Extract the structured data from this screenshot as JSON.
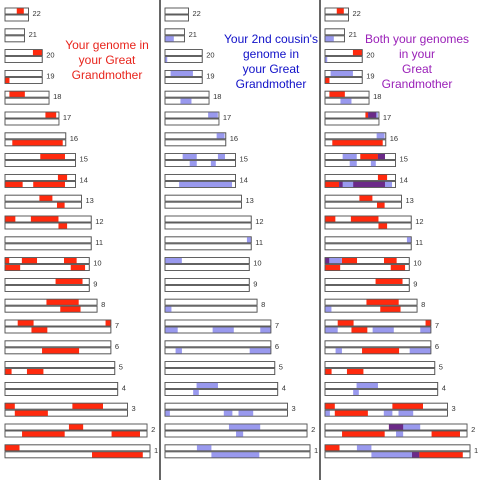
{
  "panels": [
    {
      "title": "Your genome in\nyour Great\nGrandmother",
      "title_color": "#e8241c",
      "highlight_color": "#ff2a0e"
    },
    {
      "title": "Your 2nd cousin's\ngenome in\nyour Great\nGrandmother",
      "title_color": "#1010c8",
      "highlight_color": "#8f8ff0"
    },
    {
      "title": "Both your genomes\nin your\nGreat\nGrandmother",
      "title_color": "#9a20b8",
      "highlight_color": "#ff2a0e"
    }
  ],
  "colors": {
    "you": "#ff2a0e",
    "cousin": "#9999ee",
    "overlap": "#6b2a88",
    "bar_fill": "#ffffff",
    "bar_stroke": "#555555",
    "divider": "#000000"
  },
  "chromosomes": [
    {
      "label": "22",
      "length": 0.24,
      "you": [
        [
          [
            0.5,
            0.8
          ]
        ],
        []
      ],
      "cousin": [
        [],
        []
      ]
    },
    {
      "label": "21",
      "length": 0.2,
      "you": [
        [],
        []
      ],
      "cousin": [
        [],
        [
          [
            0.0,
            0.45
          ]
        ]
      ]
    },
    {
      "label": "20",
      "length": 0.38,
      "you": [
        [
          [
            0.75,
            1.0
          ]
        ],
        []
      ],
      "cousin": [
        [],
        [
          [
            0.0,
            0.06
          ]
        ]
      ]
    },
    {
      "label": "19",
      "length": 0.38,
      "you": [
        [],
        [
          [
            0.0,
            0.12
          ]
        ]
      ],
      "cousin": [
        [
          [
            0.15,
            0.75
          ]
        ],
        []
      ]
    },
    {
      "label": "18",
      "length": 0.45,
      "you": [
        [
          [
            0.1,
            0.45
          ]
        ],
        []
      ],
      "cousin": [
        [],
        [
          [
            0.35,
            0.6
          ]
        ]
      ]
    },
    {
      "label": "17",
      "length": 0.55,
      "you": [
        [
          [
            0.75,
            0.95
          ]
        ],
        []
      ],
      "cousin": [
        [
          [
            0.8,
            0.98
          ]
        ],
        []
      ]
    },
    {
      "label": "16",
      "length": 0.62,
      "you": [
        [],
        [
          [
            0.12,
            0.95
          ]
        ]
      ],
      "cousin": [
        [
          [
            0.85,
            0.98
          ]
        ],
        []
      ]
    },
    {
      "label": "15",
      "length": 0.72,
      "you": [
        [
          [
            0.5,
            0.85
          ]
        ],
        []
      ],
      "cousin": [
        [
          [
            0.25,
            0.45
          ],
          [
            0.75,
            0.85
          ]
        ],
        [
          [
            0.35,
            0.45
          ],
          [
            0.65,
            0.72
          ]
        ]
      ]
    },
    {
      "label": "14",
      "length": 0.72,
      "you": [
        [
          [
            0.75,
            0.88
          ]
        ],
        [
          [
            0.0,
            0.25
          ],
          [
            0.4,
            0.85
          ]
        ]
      ],
      "cousin": [
        [],
        [
          [
            0.2,
            0.95
          ]
        ]
      ]
    },
    {
      "label": "13",
      "length": 0.78,
      "you": [
        [
          [
            0.45,
            0.62
          ]
        ],
        [
          [
            0.68,
            0.78
          ]
        ]
      ],
      "cousin": [
        [],
        []
      ]
    },
    {
      "label": "12",
      "length": 0.88,
      "you": [
        [
          [
            0.0,
            0.12
          ],
          [
            0.3,
            0.62
          ]
        ],
        [
          [
            0.62,
            0.72
          ]
        ]
      ],
      "cousin": [
        [],
        []
      ]
    },
    {
      "label": "11",
      "length": 0.88,
      "you": [
        [],
        []
      ],
      "cousin": [
        [
          [
            0.95,
            1.0
          ]
        ],
        []
      ]
    },
    {
      "label": "10",
      "length": 0.86,
      "you": [
        [
          [
            0.0,
            0.05
          ],
          [
            0.2,
            0.38
          ],
          [
            0.7,
            0.85
          ]
        ],
        [
          [
            0.0,
            0.18
          ],
          [
            0.78,
            0.95
          ]
        ]
      ],
      "cousin": [
        [
          [
            0.0,
            0.2
          ]
        ],
        []
      ]
    },
    {
      "label": "9",
      "length": 0.86,
      "you": [
        [
          [
            0.6,
            0.92
          ]
        ],
        []
      ],
      "cousin": [
        [],
        []
      ]
    },
    {
      "label": "8",
      "length": 0.94,
      "you": [
        [
          [
            0.45,
            0.8
          ]
        ],
        [
          [
            0.6,
            0.82
          ]
        ]
      ],
      "cousin": [
        [],
        [
          [
            0.0,
            0.07
          ]
        ]
      ]
    },
    {
      "label": "7",
      "length": 1.08,
      "you": [
        [
          [
            0.12,
            0.27
          ],
          [
            0.95,
            1.0
          ]
        ],
        [
          [
            0.25,
            0.4
          ]
        ]
      ],
      "cousin": [
        [],
        [
          [
            0.0,
            0.12
          ],
          [
            0.45,
            0.65
          ],
          [
            0.9,
            1.0
          ]
        ]
      ]
    },
    {
      "label": "6",
      "length": 1.08,
      "you": [
        [],
        [
          [
            0.35,
            0.7
          ]
        ]
      ],
      "cousin": [
        [],
        [
          [
            0.1,
            0.16
          ],
          [
            0.8,
            1.0
          ]
        ]
      ]
    },
    {
      "label": "5",
      "length": 1.12,
      "you": [
        [],
        [
          [
            0.0,
            0.06
          ],
          [
            0.2,
            0.35
          ]
        ]
      ],
      "cousin": [
        [],
        []
      ]
    },
    {
      "label": "4",
      "length": 1.15,
      "you": [
        [],
        []
      ],
      "cousin": [
        [
          [
            0.28,
            0.47
          ]
        ],
        [
          [
            0.25,
            0.3
          ]
        ]
      ]
    },
    {
      "label": "3",
      "length": 1.25,
      "you": [
        [
          [
            0.0,
            0.08
          ],
          [
            0.55,
            0.8
          ]
        ],
        [
          [
            0.08,
            0.35
          ]
        ]
      ],
      "cousin": [
        [],
        [
          [
            0.0,
            0.04
          ],
          [
            0.48,
            0.55
          ],
          [
            0.6,
            0.72
          ]
        ]
      ]
    },
    {
      "label": "2",
      "length": 1.45,
      "you": [
        [
          [
            0.45,
            0.55
          ]
        ],
        [
          [
            0.12,
            0.42
          ],
          [
            0.75,
            0.95
          ]
        ]
      ],
      "cousin": [
        [
          [
            0.45,
            0.67
          ]
        ],
        [
          [
            0.5,
            0.55
          ]
        ]
      ]
    },
    {
      "label": "1",
      "length": 1.48,
      "you": [
        [
          [
            0.0,
            0.1
          ]
        ],
        [
          [
            0.6,
            0.95
          ]
        ]
      ],
      "cousin": [
        [
          [
            0.22,
            0.32
          ]
        ],
        [
          [
            0.32,
            0.65
          ]
        ]
      ]
    }
  ]
}
